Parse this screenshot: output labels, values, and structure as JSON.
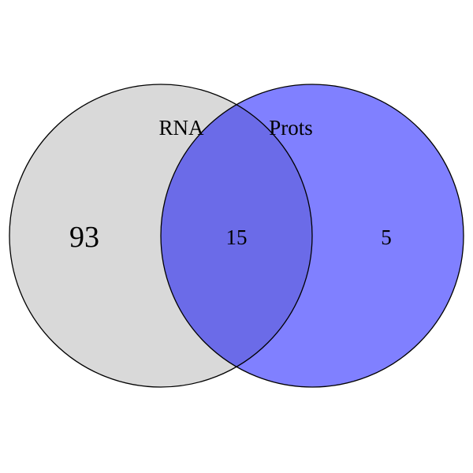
{
  "sets": [
    {
      "name": "RNA",
      "color": "#d9d9d9"
    },
    {
      "name": "Prots",
      "color": "#8080ff"
    }
  ],
  "overlap_color": "#6b6be8",
  "outline_color": "#000000",
  "counts": {
    "rna_only": "93",
    "both": "15",
    "prots_only": "5"
  }
}
